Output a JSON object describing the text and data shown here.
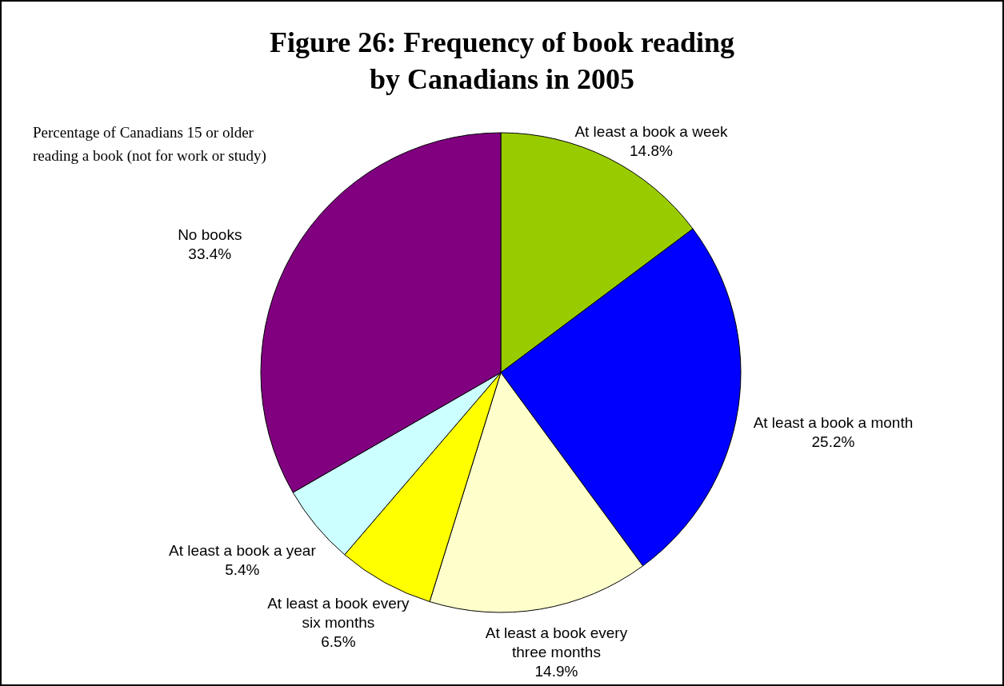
{
  "chart_data": {
    "type": "pie",
    "title": [
      "Figure 26: Frequency of book reading",
      "by Canadians in 2005"
    ],
    "categories": [
      "At least a book a week",
      "At least a book a month",
      "At least a book every three months",
      "At least a book every six months",
      "At least a book a year",
      "No books"
    ],
    "values": [
      14.8,
      25.2,
      14.9,
      6.5,
      5.4,
      33.4
    ],
    "colors": [
      "#99cc00",
      "#0000ff",
      "#ffffcc",
      "#ffff00",
      "#ccffff",
      "#800080"
    ],
    "value_labels": [
      "14.8%",
      "25.2%",
      "14.9%",
      "6.5%",
      "5.4%",
      "33.4%"
    ],
    "annotations": [
      "Percentage of Canadians 15 or older reading a book (not for work or study)"
    ]
  }
}
